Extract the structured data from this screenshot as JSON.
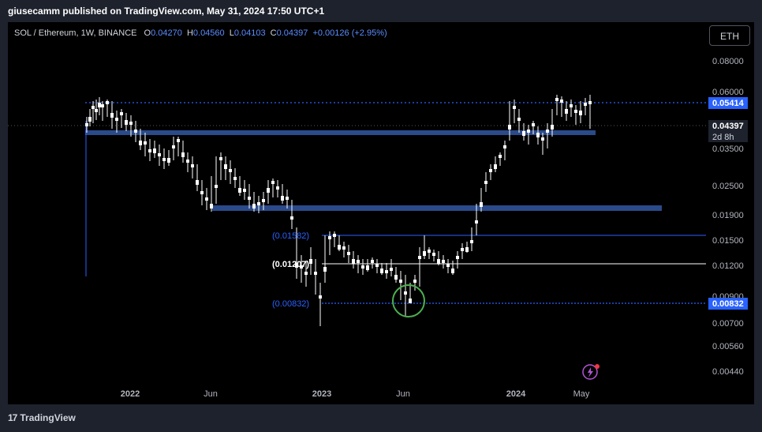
{
  "header": {
    "published_by": "giusecamm published on TradingView.com, May 31, 2024 17:50 UTC+1"
  },
  "legend": {
    "symbol": "SOL / Ethereum, 1W, BINANCE",
    "open_label": "O",
    "open": "0.04270",
    "high_label": "H",
    "high": "0.04560",
    "low_label": "L",
    "low": "0.04103",
    "close_label": "C",
    "close": "0.04397",
    "change": "+0.00126 (+2.95%)"
  },
  "currency_button": "ETH",
  "price_axis": {
    "ticks": [
      "0.08000",
      "0.06000",
      "0.03500",
      "0.02500",
      "0.01900",
      "0.01500",
      "0.01200",
      "0.00900",
      "0.00700",
      "0.00560",
      "0.00440"
    ],
    "badge_resistance": "0.05414",
    "badge_current": "0.04397",
    "badge_countdown": "2d 8h",
    "badge_support": "0.00832"
  },
  "time_axis": {
    "ticks": [
      "2022",
      "Jun",
      "2023",
      "Jun",
      "2024",
      "May"
    ]
  },
  "annotations": {
    "level_top": "(0.01582)",
    "level_mid": "(0.01207)",
    "level_bottom": "(0.00832)"
  },
  "colors": {
    "background": "#000000",
    "zone": "#2a4a8a",
    "accent_blue": "#2962ff",
    "circle": "#4caf50",
    "candle": "#ffffff"
  },
  "footer": {
    "logo_mark": "17",
    "brand": "TradingView"
  }
}
